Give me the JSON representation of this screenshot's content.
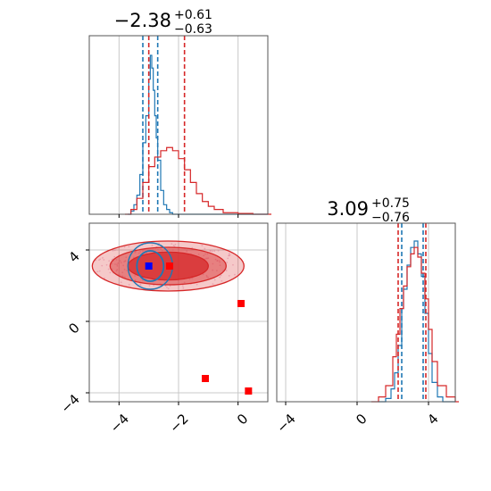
{
  "chart_data": {
    "type": "corner",
    "parameters": [
      {
        "title": {
          "main": "−2.38",
          "sup": "+0.61",
          "sub": "−0.63"
        },
        "range": [
          -5.0,
          1.0
        ],
        "ticks": [
          -4,
          -2,
          0
        ],
        "tick_labels": [
          "−4",
          "−2",
          "0"
        ]
      },
      {
        "title": {
          "main": "3.09",
          "sup": "+0.75",
          "sub": "−0.76"
        },
        "range": [
          -4.5,
          5.5
        ],
        "ticks": [
          -4,
          0,
          4
        ],
        "tick_labels": [
          "−4",
          "0",
          "4"
        ]
      }
    ],
    "grid": true,
    "series": [
      {
        "color": "#1f77b4",
        "marginal_1": {
          "x": [
            -3.7,
            -3.6,
            -3.5,
            -3.4,
            -3.3,
            -3.2,
            -3.1,
            -3.0,
            -2.95,
            -2.9,
            -2.85,
            -2.8,
            -2.75,
            -2.7,
            -2.6,
            -2.5,
            -2.4,
            -2.3,
            -2.2
          ],
          "y": [
            0.0,
            0.02,
            0.06,
            0.12,
            0.25,
            0.45,
            0.62,
            0.85,
            1.0,
            0.92,
            0.78,
            0.62,
            0.48,
            0.34,
            0.15,
            0.06,
            0.03,
            0.01,
            0.0
          ]
        },
        "quantiles_1": [
          -3.2,
          -2.7
        ],
        "marginal_2": {
          "x": [
            1.2,
            1.6,
            1.9,
            2.1,
            2.3,
            2.5,
            2.6,
            2.8,
            3.0,
            3.2,
            3.4,
            3.6,
            3.8,
            4.0,
            4.2,
            4.5,
            4.8
          ],
          "y": [
            0.0,
            0.02,
            0.08,
            0.18,
            0.35,
            0.58,
            0.7,
            0.85,
            0.96,
            1.0,
            0.92,
            0.78,
            0.55,
            0.3,
            0.12,
            0.03,
            0.0
          ]
        },
        "quantiles_2": [
          2.5,
          3.7
        ],
        "truth": [
          -3.0,
          3.1
        ]
      },
      {
        "color": "#d62728",
        "marginal_1": {
          "x": [
            -3.8,
            -3.6,
            -3.4,
            -3.2,
            -3.0,
            -2.8,
            -2.6,
            -2.4,
            -2.2,
            -2.0,
            -1.8,
            -1.6,
            -1.4,
            -1.2,
            -1.0,
            -0.8,
            -0.5,
            0.0,
            0.5,
            1.0
          ],
          "y": [
            0.0,
            0.03,
            0.1,
            0.2,
            0.3,
            0.36,
            0.4,
            0.42,
            0.4,
            0.35,
            0.28,
            0.2,
            0.13,
            0.08,
            0.05,
            0.03,
            0.01,
            0.005,
            0.0,
            0.0
          ]
        },
        "quantiles_1": [
          -3.0,
          -1.8
        ],
        "marginal_2": {
          "x": [
            0.8,
            1.2,
            1.6,
            2.0,
            2.2,
            2.4,
            2.6,
            2.8,
            3.0,
            3.2,
            3.4,
            3.6,
            3.8,
            4.0,
            4.2,
            4.5,
            5.0,
            5.5
          ],
          "y": [
            0.0,
            0.03,
            0.1,
            0.28,
            0.42,
            0.58,
            0.72,
            0.84,
            0.92,
            0.96,
            0.9,
            0.8,
            0.64,
            0.45,
            0.25,
            0.1,
            0.03,
            0.0
          ]
        },
        "quantiles_2": [
          2.3,
          3.85
        ],
        "truth": [
          -2.3,
          3.1
        ]
      }
    ],
    "red_markers": [
      {
        "x": 0.1,
        "y": 1.0
      },
      {
        "x": -1.1,
        "y": -3.2
      },
      {
        "x": 0.35,
        "y": -3.9
      }
    ]
  }
}
